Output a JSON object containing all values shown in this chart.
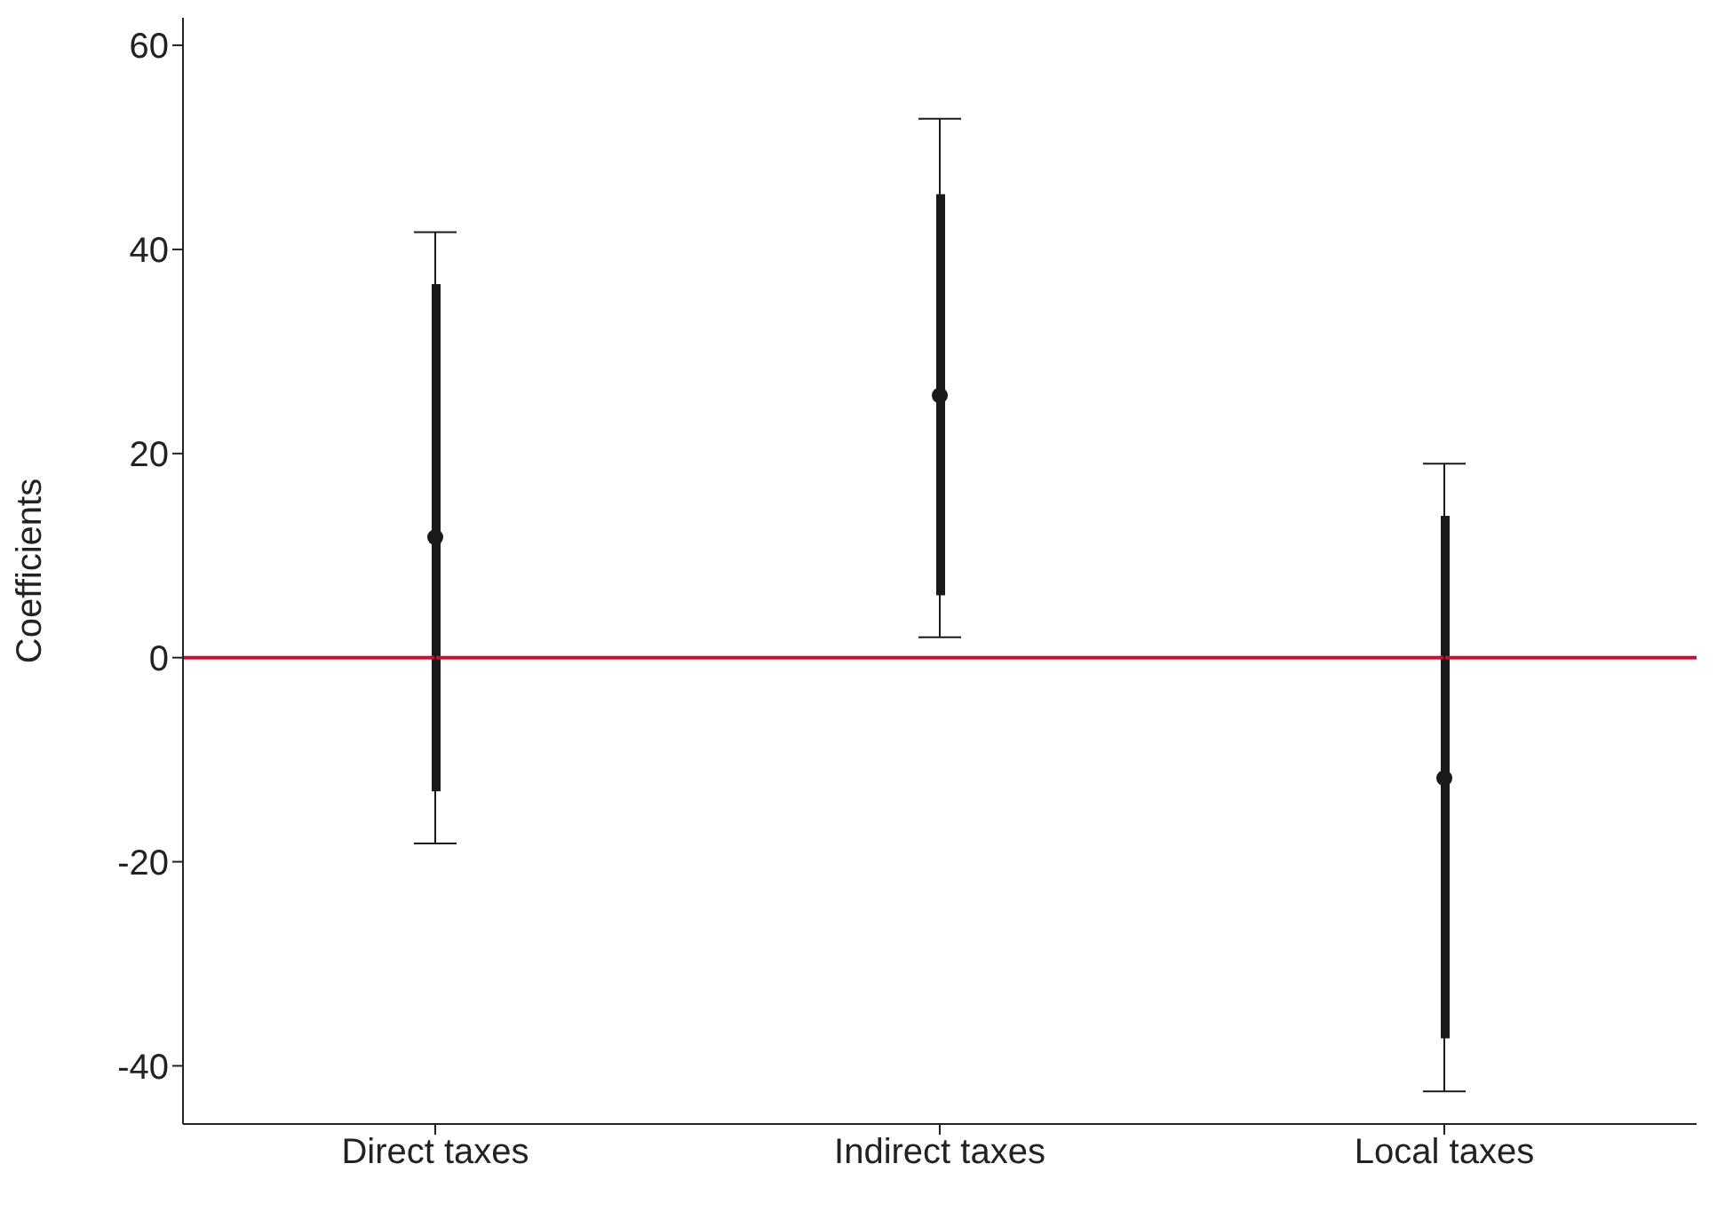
{
  "chart_data": {
    "type": "scatter",
    "ylabel": "Coefficients",
    "categories": [
      "Direct taxes",
      "Indirect taxes",
      "Local taxes"
    ],
    "series": [
      {
        "type": "bar",
        "color": "#1a1a1a",
        "base": [
          -13.1,
          6.1,
          -37.3
        ],
        "values": [
          49.7,
          39.3,
          51.2
        ]
      },
      {
        "color": "#1a1a1a",
        "values": [
          11.8,
          25.7,
          -11.8
        ],
        "errors": [
          [
            -18.2,
            41.7
          ],
          [
            2.0,
            52.8
          ],
          [
            -42.5,
            19.0
          ]
        ]
      }
    ],
    "ylim": [
      -45.7,
      62.7
    ],
    "yticks": [
      -40,
      -20,
      0,
      20,
      40,
      60
    ],
    "ref_lines": [
      {
        "axis": "y",
        "value": 0,
        "color": "#c8102e"
      }
    ],
    "grid": false,
    "legend": false,
    "marker": "circle"
  }
}
